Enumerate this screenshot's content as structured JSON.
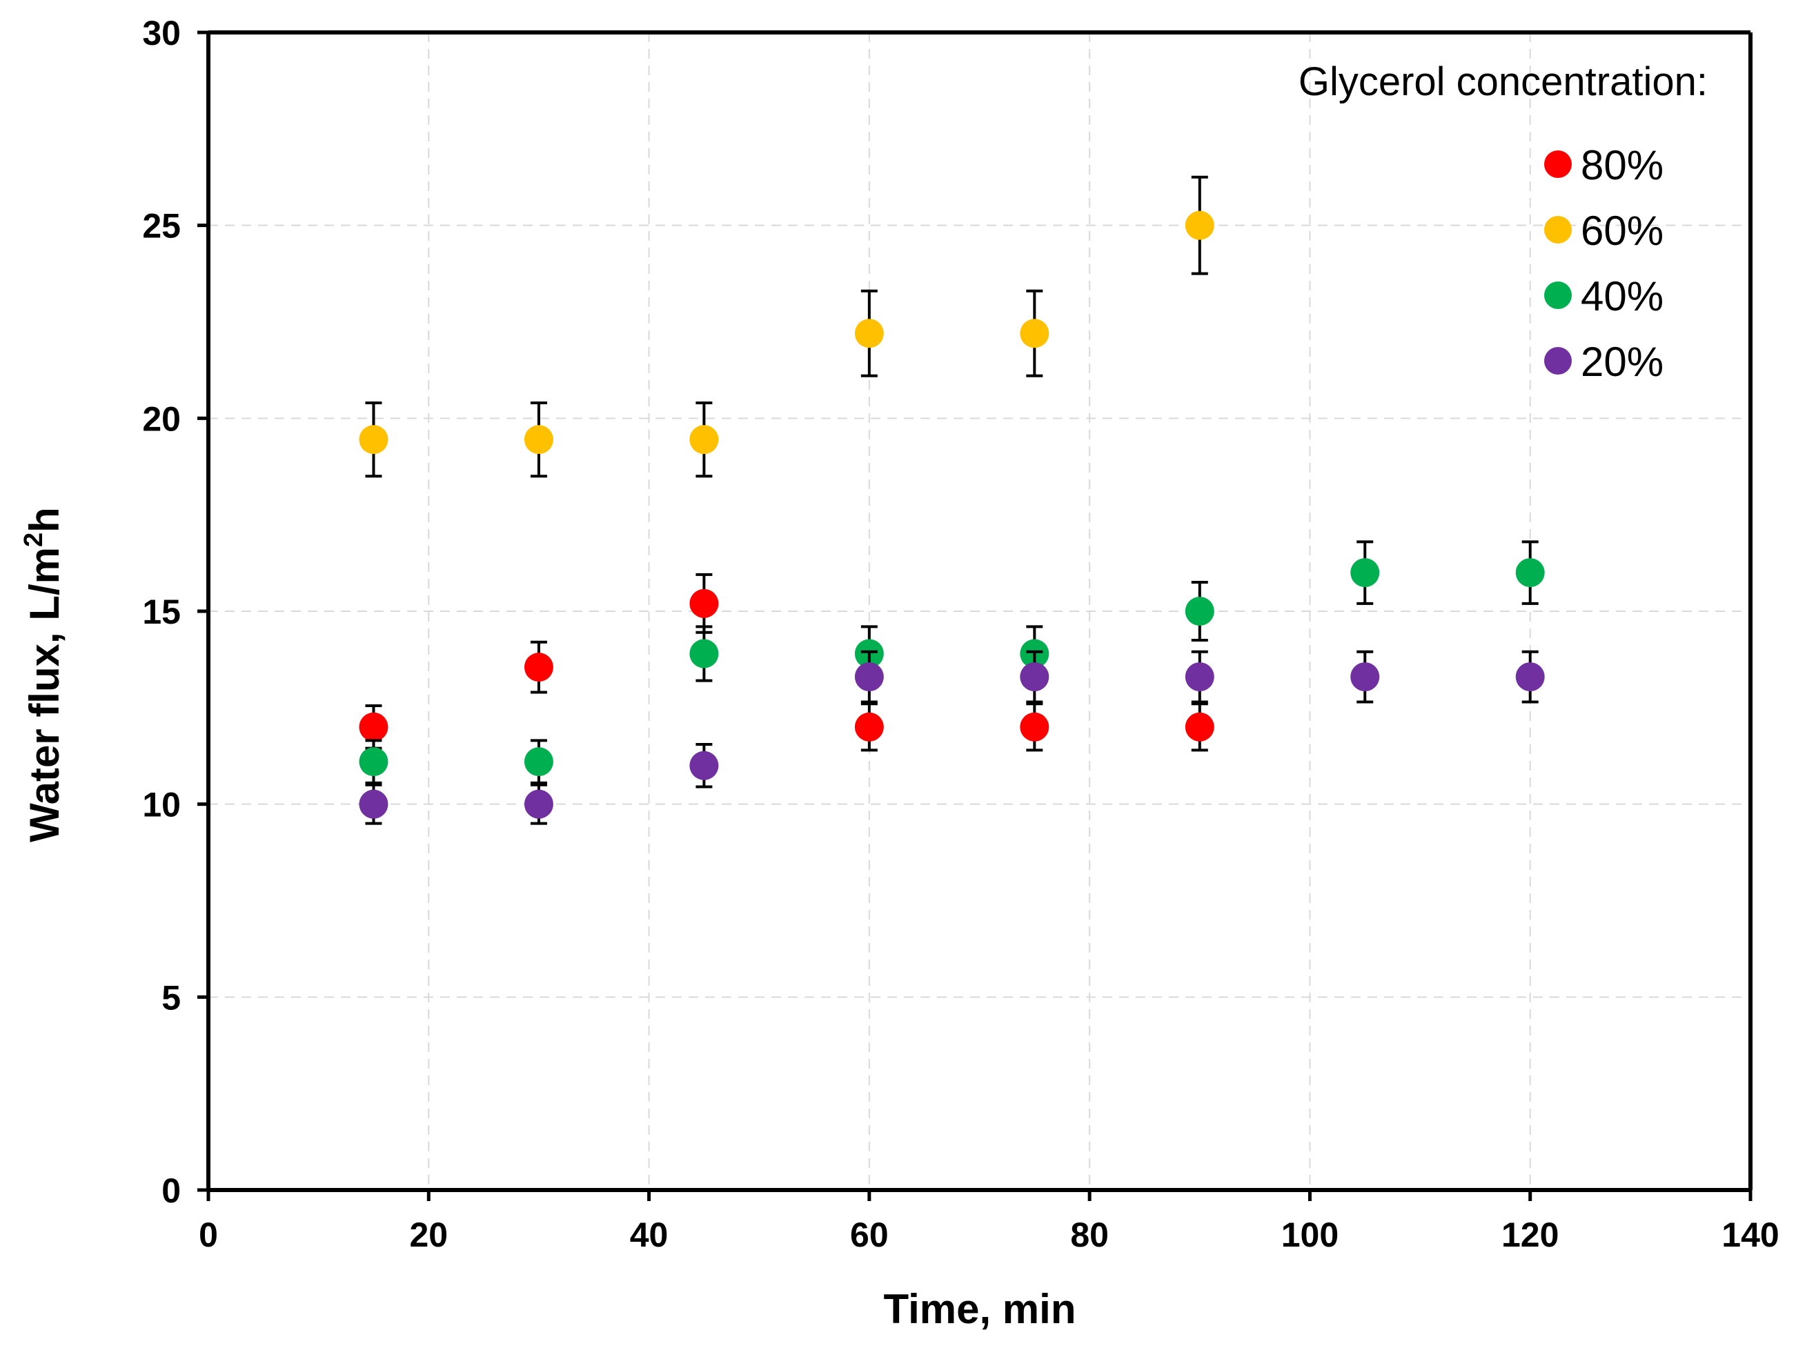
{
  "chart_data": {
    "type": "scatter",
    "title": "",
    "xlabel": "Time, min",
    "ylabel_main": "Water flux, L/m",
    "ylabel_sup": "2",
    "ylabel_tail": "h",
    "xlim": [
      0,
      140
    ],
    "ylim": [
      0,
      30
    ],
    "xticks": [
      "0",
      "20",
      "40",
      "60",
      "80",
      "100",
      "120",
      "140"
    ],
    "yticks": [
      "0",
      "5",
      "10",
      "15",
      "20",
      "25",
      "30"
    ],
    "grid": true,
    "legend_title": "Glycerol concentration:",
    "legend_position": "top-right",
    "series": [
      {
        "name": "80%",
        "color": "#ff0000",
        "x": [
          15,
          30,
          45,
          60,
          75,
          90
        ],
        "y": [
          12.0,
          13.55,
          15.2,
          12.0,
          12.0,
          12.0
        ],
        "err": [
          0.55,
          0.65,
          0.75,
          0.6,
          0.6,
          0.6
        ]
      },
      {
        "name": "60%",
        "color": "#ffc000",
        "x": [
          15,
          30,
          45,
          60,
          75,
          90
        ],
        "y": [
          19.45,
          19.45,
          19.45,
          22.2,
          22.2,
          25.0
        ],
        "err": [
          0.95,
          0.95,
          0.95,
          1.1,
          1.1,
          1.25
        ]
      },
      {
        "name": "40%",
        "color": "#00b050",
        "x": [
          15,
          30,
          45,
          60,
          75,
          90,
          105,
          120
        ],
        "y": [
          11.1,
          11.1,
          13.9,
          13.9,
          13.9,
          15.0,
          16.0,
          16.0
        ],
        "err": [
          0.55,
          0.55,
          0.7,
          0.7,
          0.7,
          0.75,
          0.8,
          0.8
        ]
      },
      {
        "name": "20%",
        "color": "#7030a0",
        "x": [
          15,
          30,
          45,
          60,
          75,
          90,
          105,
          120
        ],
        "y": [
          10.0,
          10.0,
          11.0,
          13.3,
          13.3,
          13.3,
          13.3,
          13.3
        ],
        "err": [
          0.5,
          0.5,
          0.55,
          0.65,
          0.65,
          0.65,
          0.65,
          0.65
        ]
      }
    ]
  }
}
